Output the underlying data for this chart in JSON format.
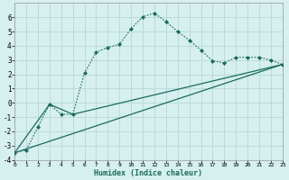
{
  "xlabel": "Humidex (Indice chaleur)",
  "background_color": "#d6efef",
  "grid_color": "#b8d8d8",
  "line_color": "#1a6b5a",
  "xlim": [
    0,
    23
  ],
  "ylim": [
    -4,
    7
  ],
  "xticks": [
    0,
    1,
    2,
    3,
    4,
    5,
    6,
    7,
    8,
    9,
    10,
    11,
    12,
    13,
    14,
    15,
    16,
    17,
    18,
    19,
    20,
    21,
    22,
    23
  ],
  "yticks": [
    -4,
    -3,
    -2,
    -1,
    0,
    1,
    2,
    3,
    4,
    5,
    6
  ],
  "series_dotted": {
    "x": [
      0,
      1,
      2,
      3,
      4,
      5,
      6,
      7,
      8,
      9,
      10,
      11,
      12,
      13,
      14,
      15,
      16,
      17,
      18,
      19,
      20,
      21,
      22,
      23
    ],
    "y": [
      -3.5,
      -3.3,
      -1.7,
      -0.1,
      -0.8,
      -0.8,
      2.1,
      3.55,
      3.9,
      4.1,
      5.2,
      6.05,
      6.3,
      5.7,
      5.0,
      4.4,
      3.7,
      2.95,
      2.8,
      3.2,
      3.2,
      3.2,
      3.0,
      2.7
    ]
  },
  "series_line1": {
    "x": [
      0,
      23
    ],
    "y": [
      -3.5,
      2.7
    ]
  },
  "series_line2": {
    "x": [
      0,
      3,
      5,
      23
    ],
    "y": [
      -3.5,
      -0.1,
      -0.8,
      2.7
    ]
  }
}
